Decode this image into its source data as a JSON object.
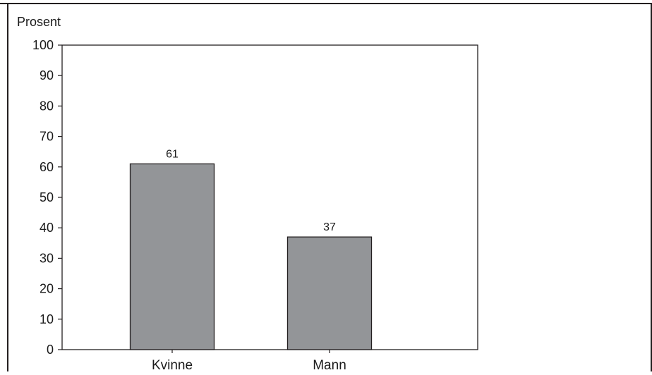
{
  "chart_data": {
    "type": "bar",
    "ylabel": "Prosent",
    "categories": [
      "Kvinne",
      "Mann"
    ],
    "values": [
      61,
      37
    ],
    "data_labels": [
      "61",
      "37"
    ],
    "ylim": [
      0,
      100
    ],
    "yticks": [
      0,
      10,
      20,
      30,
      40,
      50,
      60,
      70,
      80,
      90,
      100
    ],
    "grid": false,
    "legend": "none",
    "colors": {
      "bar_fill": "#939598",
      "bar_stroke": "#231f20",
      "axis": "#231f20"
    }
  }
}
